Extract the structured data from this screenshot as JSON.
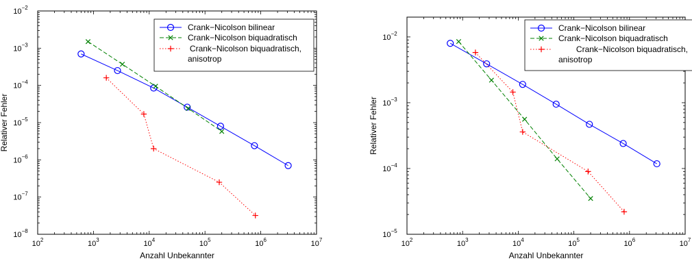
{
  "chart_data": [
    {
      "type": "line",
      "xscale": "log",
      "yscale": "log",
      "xlim": [
        100,
        10000000
      ],
      "ylim": [
        1e-08,
        0.01
      ],
      "xlabel": "Anzahl Unbekannter",
      "ylabel": "Relativer Fehler",
      "x_ticks": [
        {
          "value": 100,
          "base": "10",
          "exp": "2"
        },
        {
          "value": 1000,
          "base": "10",
          "exp": "3"
        },
        {
          "value": 10000,
          "base": "10",
          "exp": "4"
        },
        {
          "value": 100000,
          "base": "10",
          "exp": "5"
        },
        {
          "value": 1000000,
          "base": "10",
          "exp": "6"
        },
        {
          "value": 10000000,
          "base": "10",
          "exp": "7"
        }
      ],
      "y_ticks": [
        {
          "value": 1e-08,
          "base": "10",
          "exp": "−8"
        },
        {
          "value": 1e-07,
          "base": "10",
          "exp": "−7"
        },
        {
          "value": 1e-06,
          "base": "10",
          "exp": "−6"
        },
        {
          "value": 1e-05,
          "base": "10",
          "exp": "−5"
        },
        {
          "value": 0.0001,
          "base": "10",
          "exp": "−4"
        },
        {
          "value": 0.001,
          "base": "10",
          "exp": "−3"
        },
        {
          "value": 0.01,
          "base": "10",
          "exp": "−2"
        }
      ],
      "legend_position": "top-right",
      "series": [
        {
          "name": "Crank−Nicolson bilinear",
          "color": "#0000ff",
          "linestyle": "solid",
          "marker": "circle",
          "x": [
            600,
            2700,
            12000,
            48000,
            190000,
            770000,
            3100000
          ],
          "y": [
            0.0007,
            0.00025,
            8.5e-05,
            2.6e-05,
            8e-06,
            2.4e-06,
            7e-07
          ]
        },
        {
          "name": "Crank−Nicolson biquadratisch",
          "color": "#008000",
          "linestyle": "dashed",
          "marker": "x",
          "x": [
            800,
            3300,
            13000,
            50000,
            200000
          ],
          "y": [
            0.0015,
            0.00037,
            9.5e-05,
            2.4e-05,
            5.8e-06
          ]
        },
        {
          "name": "Crank−Nicolson biquadratisch, anisotrop",
          "color": "#ff0000",
          "linestyle": "dotted",
          "marker": "plus",
          "x": [
            1700,
            8000,
            12000,
            180000,
            800000
          ],
          "y": [
            0.00016,
            1.7e-05,
            2e-06,
            2.5e-07,
            3.2e-08
          ]
        }
      ]
    },
    {
      "type": "line",
      "xscale": "log",
      "yscale": "log",
      "xlim": [
        100,
        10000000
      ],
      "ylim": [
        1e-05,
        0.02
      ],
      "xlabel": "Anzahl Unbekannter",
      "ylabel": "Relativer Fehler",
      "x_ticks": [
        {
          "value": 100,
          "base": "10",
          "exp": "2"
        },
        {
          "value": 1000,
          "base": "10",
          "exp": "3"
        },
        {
          "value": 10000,
          "base": "10",
          "exp": "4"
        },
        {
          "value": 100000,
          "base": "10",
          "exp": "5"
        },
        {
          "value": 1000000,
          "base": "10",
          "exp": "6"
        },
        {
          "value": 10000000,
          "base": "10",
          "exp": "7"
        }
      ],
      "y_ticks": [
        {
          "value": 1e-05,
          "base": "10",
          "exp": "−5"
        },
        {
          "value": 0.0001,
          "base": "10",
          "exp": "−4"
        },
        {
          "value": 0.001,
          "base": "10",
          "exp": "−3"
        },
        {
          "value": 0.01,
          "base": "10",
          "exp": "−2"
        }
      ],
      "legend_position": "top-right",
      "series": [
        {
          "name": "Crank−Nicolson bilinear",
          "color": "#0000ff",
          "linestyle": "solid",
          "marker": "circle",
          "x": [
            600,
            2700,
            12000,
            48000,
            190000,
            770000,
            3100000
          ],
          "y": [
            0.008,
            0.0039,
            0.0019,
            0.00095,
            0.00047,
            0.00024,
            0.000118
          ]
        },
        {
          "name": "Crank−Nicolson biquadratisch",
          "color": "#008000",
          "linestyle": "dashed",
          "marker": "x",
          "x": [
            850,
            3300,
            13000,
            50000,
            200000
          ],
          "y": [
            0.0085,
            0.0022,
            0.00056,
            0.00014,
            3.5e-05
          ]
        },
        {
          "name": "Crank−Nicolson biquadratisch, anisotrop",
          "color": "#ff0000",
          "linestyle": "dotted",
          "marker": "plus",
          "x": [
            1700,
            8000,
            12000,
            180000,
            800000
          ],
          "y": [
            0.0058,
            0.00145,
            0.00036,
            9e-05,
            2.2e-05
          ]
        }
      ]
    }
  ]
}
